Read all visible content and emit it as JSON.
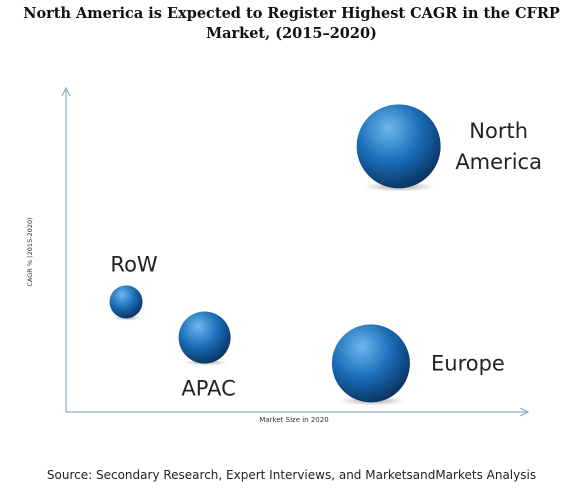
{
  "title_line1": "North America is Expected to Register Highest CAGR in the CFRP",
  "title_line2": "Market, (2015–2020)",
  "source": "Source: Secondary Research, Expert Interviews, and MarketsandMarkets Analysis",
  "chart_data": {
    "type": "scatter",
    "title": "North America is Expected to Register Highest CAGR in the CFRP Market, (2015–2020)",
    "xlabel": "Market Size in 2020",
    "ylabel": "CAGR % (2015-2020)",
    "grid": false,
    "legend": "none",
    "xlim": [
      0,
      100
    ],
    "ylim": [
      0,
      100
    ],
    "series": [
      {
        "label_lines": [
          "North",
          "America"
        ],
        "x": 72,
        "y": 82,
        "size": 84,
        "label_side": "right"
      },
      {
        "label_lines": [
          "RoW"
        ],
        "x": 13,
        "y": 34,
        "size": 33,
        "label_side": "above"
      },
      {
        "label_lines": [
          "APAC"
        ],
        "x": 30,
        "y": 23,
        "size": 52,
        "label_side": "below"
      },
      {
        "label_lines": [
          "Europe"
        ],
        "x": 66,
        "y": 15,
        "size": 78,
        "label_side": "right"
      }
    ],
    "colors": {
      "bubble_light": "#6fb8ee",
      "bubble_mid": "#1a6cb8",
      "bubble_dark": "#0a3564",
      "axis": "#8eaec9"
    }
  }
}
